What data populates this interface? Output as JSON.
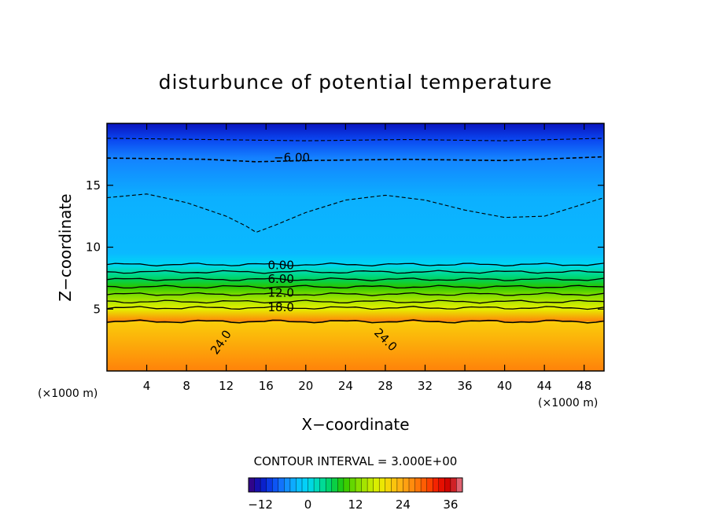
{
  "chart_data": {
    "type": "heatmap",
    "title": "disturbunce of potential temperature",
    "xlabel": "X−coordinate",
    "ylabel": "Z−coordinate",
    "x_unit": "(×1000 m)",
    "y_unit": "(×1000 m)",
    "xlim": [
      0,
      50
    ],
    "ylim": [
      0,
      20
    ],
    "x_ticks": [
      4,
      8,
      12,
      16,
      20,
      24,
      28,
      32,
      36,
      40,
      44,
      48
    ],
    "x_tick_labels": [
      "4",
      "8",
      "12",
      "16",
      "20",
      "24",
      "28",
      "32",
      "36",
      "40",
      "44",
      "48"
    ],
    "y_ticks": [
      5,
      10,
      15
    ],
    "y_tick_labels": [
      "5",
      "10",
      "15"
    ],
    "contour_interval_text": "CONTOUR INTERVAL = 3.000E+00",
    "contour_labels": [
      {
        "text": "−6.00",
        "x": 18.6,
        "y": 17.2
      },
      {
        "text": "0.00",
        "x": 17.5,
        "y": 8.5
      },
      {
        "text": "6.00",
        "x": 17.5,
        "y": 7.4
      },
      {
        "text": "12.0",
        "x": 17.5,
        "y": 6.3
      },
      {
        "text": "18.0",
        "x": 17.5,
        "y": 5.1
      },
      {
        "text": "24.0",
        "x": 11.5,
        "y": 2.3,
        "angle": -55
      },
      {
        "text": "24.0",
        "x": 28.0,
        "y": 2.5,
        "angle": 45
      }
    ],
    "vertical_profile": [
      {
        "z": 0.0,
        "value": 27
      },
      {
        "z": 4.0,
        "value": 27
      },
      {
        "z": 4.0,
        "value": 21
      },
      {
        "z": 5.0,
        "value": 18
      },
      {
        "z": 5.6,
        "value": 15
      },
      {
        "z": 6.2,
        "value": 12
      },
      {
        "z": 6.8,
        "value": 9
      },
      {
        "z": 7.4,
        "value": 6
      },
      {
        "z": 8.0,
        "value": 3
      },
      {
        "z": 8.6,
        "value": 0
      },
      {
        "z": 9.5,
        "value": -3
      },
      {
        "z": 14.0,
        "value": -3.5
      },
      {
        "z": 17.2,
        "value": -6
      },
      {
        "z": 18.7,
        "value": -9
      },
      {
        "z": 20.0,
        "value": -12
      }
    ],
    "solid_contours": [
      {
        "value": 24,
        "z": 4.0
      },
      {
        "value": 18,
        "z": 5.1
      },
      {
        "value": 15,
        "z": 5.6
      },
      {
        "value": 12,
        "z": 6.2
      },
      {
        "value": 9,
        "z": 6.8
      },
      {
        "value": 6,
        "z": 7.4
      },
      {
        "value": 3,
        "z": 8.0
      },
      {
        "value": 0,
        "z": 8.6
      }
    ],
    "dashed_contours": [
      {
        "value": -3,
        "points": [
          [
            0,
            14.0
          ],
          [
            4,
            14.3
          ],
          [
            8,
            13.6
          ],
          [
            12,
            12.5
          ],
          [
            14,
            11.7
          ],
          [
            15,
            11.2
          ],
          [
            17,
            11.8
          ],
          [
            20,
            12.8
          ],
          [
            24,
            13.8
          ],
          [
            28,
            14.2
          ],
          [
            32,
            13.8
          ],
          [
            36,
            13.0
          ],
          [
            40,
            12.4
          ],
          [
            44,
            12.5
          ],
          [
            48,
            13.5
          ],
          [
            50,
            14.0
          ]
        ]
      },
      {
        "value": -6,
        "points": [
          [
            0,
            17.2
          ],
          [
            10,
            17.1
          ],
          [
            15,
            16.9
          ],
          [
            20,
            17.0
          ],
          [
            30,
            17.1
          ],
          [
            40,
            17.0
          ],
          [
            50,
            17.3
          ]
        ]
      },
      {
        "value": -9,
        "points": [
          [
            0,
            18.8
          ],
          [
            10,
            18.7
          ],
          [
            20,
            18.6
          ],
          [
            30,
            18.7
          ],
          [
            40,
            18.6
          ],
          [
            50,
            18.8
          ]
        ]
      }
    ],
    "colorbar": {
      "min": -15,
      "max": 39,
      "ticks": [
        -12,
        0,
        12,
        24,
        36
      ],
      "tick_labels": [
        "−12",
        "0",
        "12",
        "24",
        "36"
      ]
    }
  }
}
